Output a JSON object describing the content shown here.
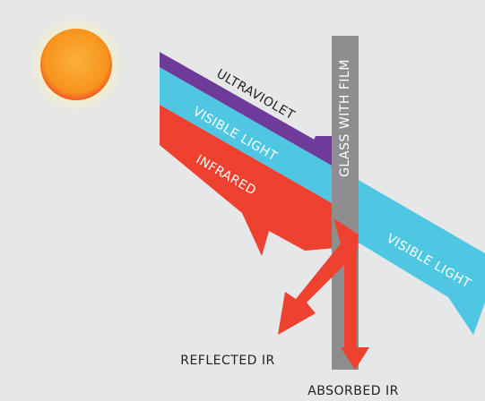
{
  "labels": {
    "ultraviolet": "ULTRAVIOLET",
    "visible_light": "VISIBLE LIGHT",
    "infrared": "INFRARED",
    "glass": "GLASS WITH FILM",
    "transmitted": "VISIBLE LIGHT",
    "reflected": "REFLECTED IR",
    "absorbed": "ABSORBED IR"
  }
}
